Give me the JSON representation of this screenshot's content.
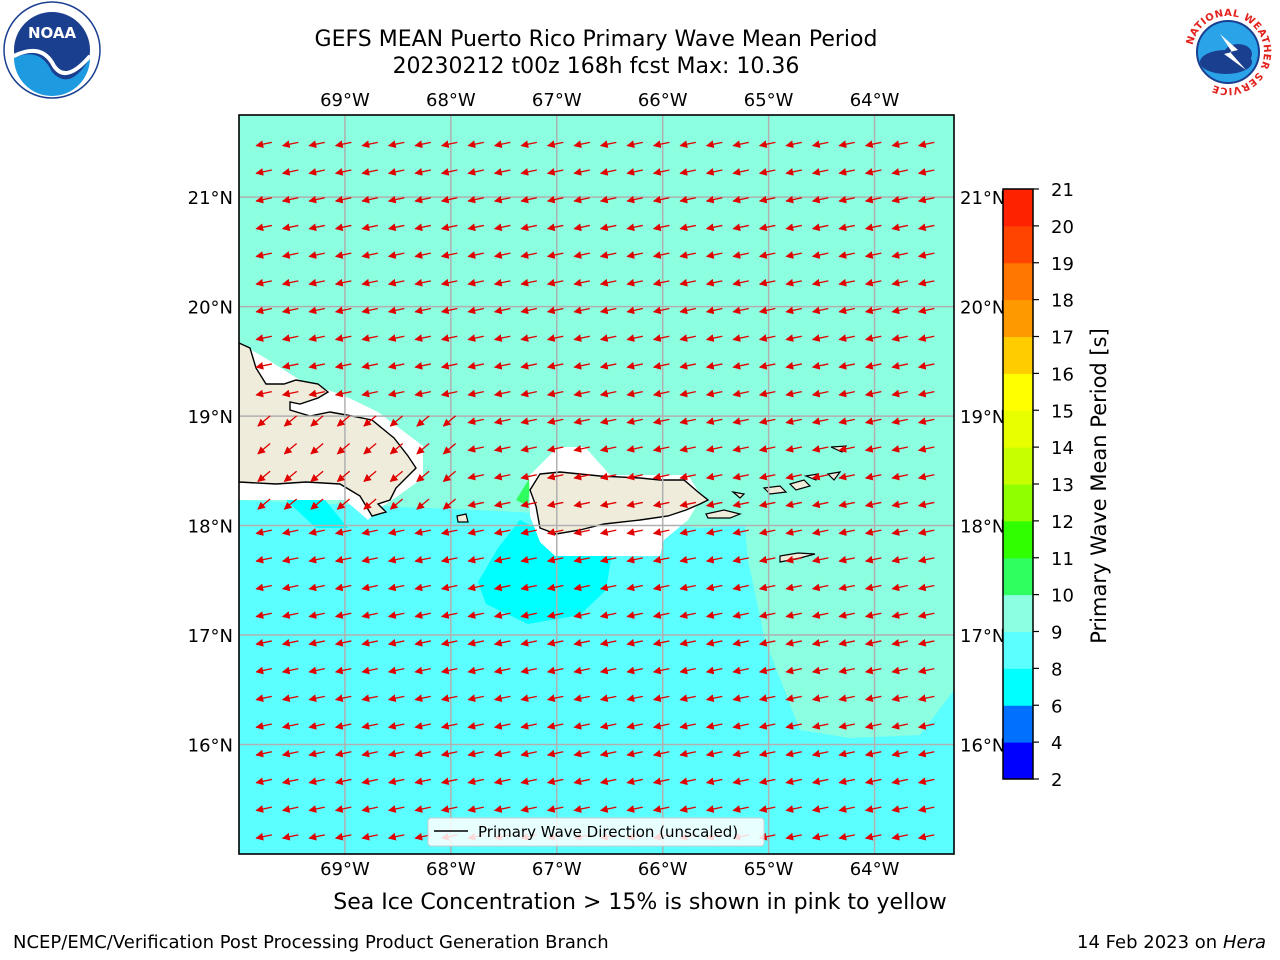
{
  "title": {
    "line1": "GEFS MEAN Puerto Rico Primary Wave Mean Period",
    "line2": "20230212 t00z 168h fcst   Max: 10.36"
  },
  "logos": [
    {
      "name": "noaa-logo",
      "text": "NOAA"
    },
    {
      "name": "nws-logo",
      "text": "NATIONAL WEATHER SERVICE"
    }
  ],
  "map": {
    "lon_range": [
      -70,
      -63.25
    ],
    "lat_range": [
      15,
      21.75
    ],
    "lon_ticks": [
      "69°W",
      "68°W",
      "67°W",
      "66°W",
      "65°W",
      "64°W"
    ],
    "lat_ticks": [
      "21°N",
      "20°N",
      "19°N",
      "18°N",
      "17°N",
      "16°N"
    ],
    "grid": true,
    "legend": "Primary Wave Direction (unscaled)",
    "vector_color": "#e00000",
    "land_color": "#efecdc",
    "islands": [
      "Hispaniola",
      "Puerto Rico",
      "Virgin Islands",
      "St. Croix",
      "Mona"
    ]
  },
  "colorbar": {
    "label": "Primary Wave Mean Period [s]",
    "ticks": [
      "2",
      "4",
      "6",
      "8",
      "9",
      "10",
      "11",
      "12",
      "13",
      "14",
      "15",
      "16",
      "17",
      "18",
      "19",
      "20",
      "21"
    ],
    "colors": [
      "#0000ff",
      "#0070ff",
      "#00ffff",
      "#5cffff",
      "#8cffe0",
      "#30ff60",
      "#30ff00",
      "#90ff00",
      "#c8ff00",
      "#e8ff00",
      "#ffff00",
      "#ffcc00",
      "#ff9900",
      "#ff7700",
      "#ff4400",
      "#ff2200"
    ]
  },
  "caption": "Sea Ice Concentration > 15% is shown in pink to yellow",
  "footer": {
    "left": "NCEP/EMC/Verification Post Processing Product Generation Branch",
    "right_date": "14 Feb 2023 on",
    "right_host": "Hera"
  }
}
